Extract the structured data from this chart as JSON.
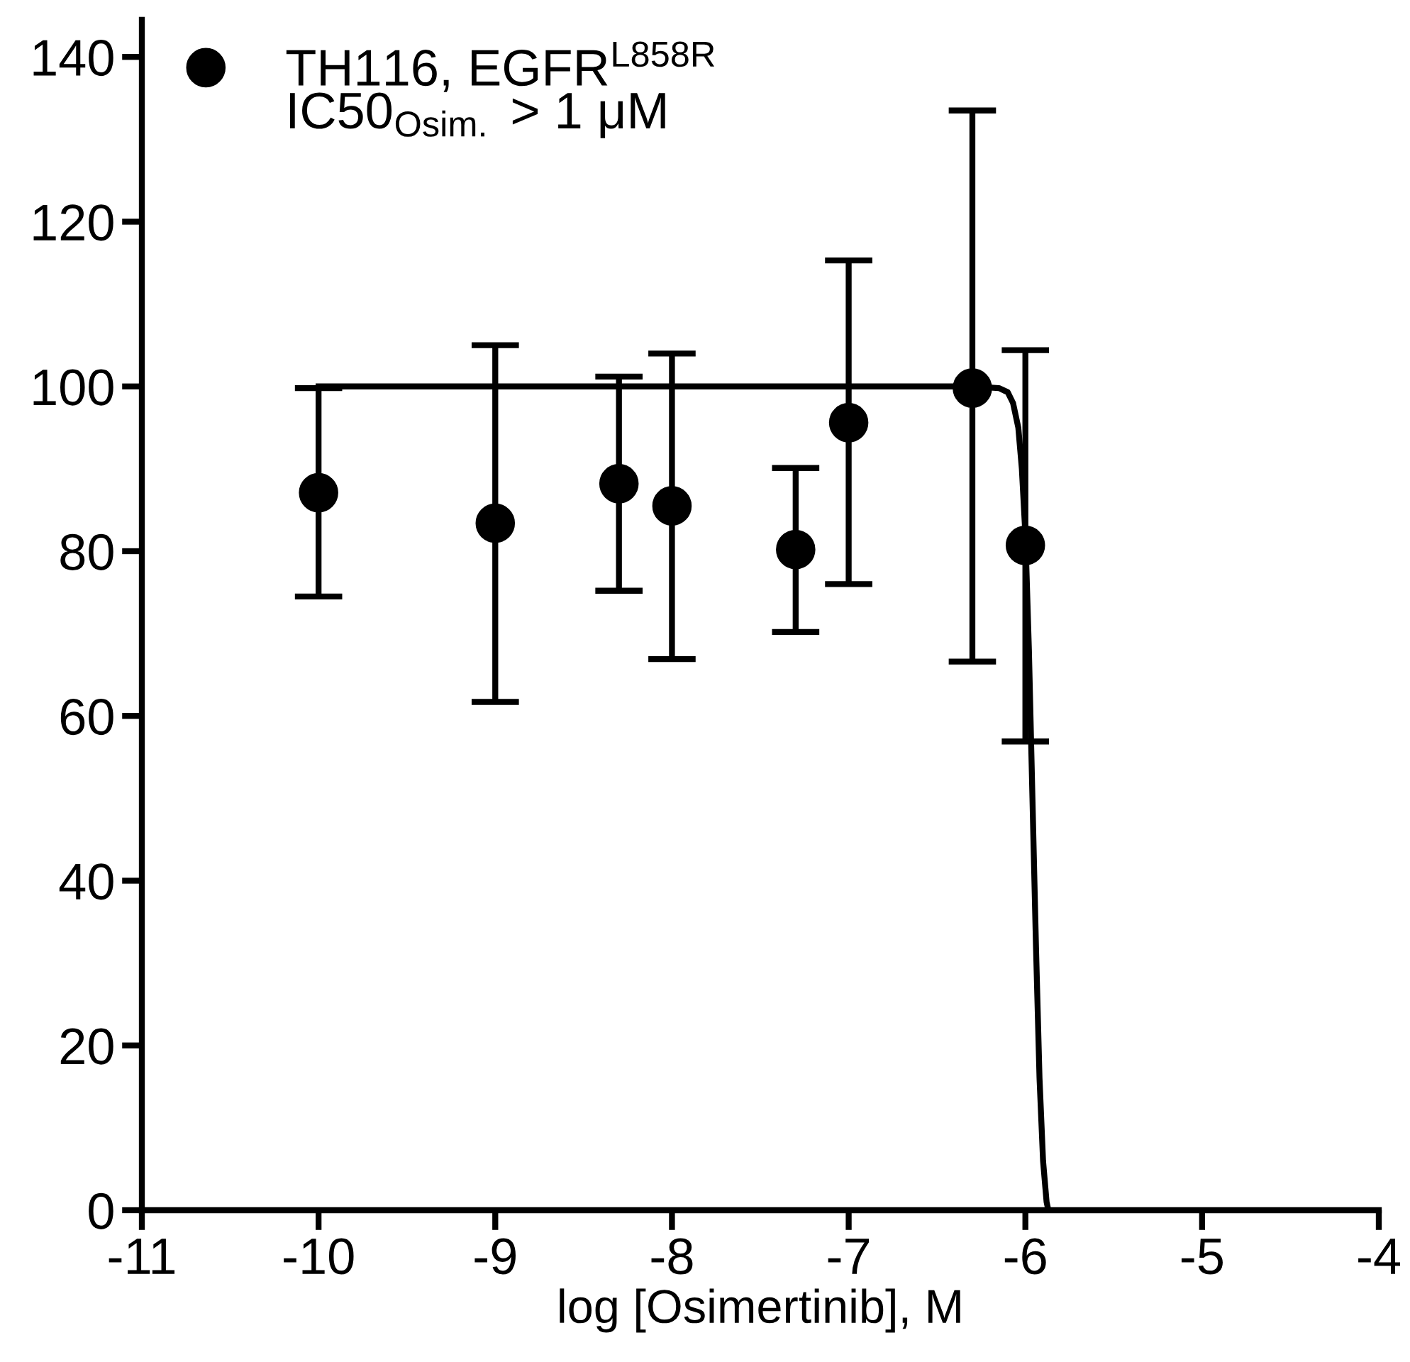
{
  "chart_data": {
    "type": "scatter",
    "xlabel": "log [Osimertinib], M",
    "xlim": [
      -11,
      -4
    ],
    "xticks": [
      -11,
      -10,
      -9,
      -8,
      -7,
      -6,
      -5,
      -4
    ],
    "ylim": [
      0,
      144.5
    ],
    "yticks": [
      0,
      20,
      40,
      60,
      80,
      100,
      120,
      140
    ],
    "grid": false,
    "legend": "top left",
    "annotations": [
      "IC50$_{Osim.}$ > 1 μM"
    ],
    "series": [
      {
        "name": "TH116, EGFR$^{L858R}$",
        "marker": "circle",
        "color": "#000000",
        "x": [
          -10,
          -9,
          -8.3,
          -8,
          -7.3,
          -7,
          -6.3,
          -6
        ],
        "values": [
          87.1,
          83.4,
          88.2,
          85.5,
          80.2,
          95.6,
          99.8,
          80.7
        ],
        "errors": [
          [
            74.5,
            99.8
          ],
          [
            61.7,
            105.0
          ],
          [
            75.2,
            101.2
          ],
          [
            66.9,
            104.0
          ],
          [
            70.2,
            90.1
          ],
          [
            76.0,
            115.3
          ],
          [
            66.6,
            133.5
          ],
          [
            56.9,
            104.4
          ]
        ]
      },
      {
        "type": "line",
        "color": "#000000",
        "line_style": "solid",
        "x": [
          -10,
          -8,
          -7,
          -6.3,
          -6.15,
          -6.1,
          -6.07,
          -6.04,
          -6.02,
          -6.0,
          -5.98,
          -5.96,
          -5.94,
          -5.92,
          -5.9,
          -5.88,
          -5.87
        ],
        "values": [
          100,
          100,
          100,
          100,
          99.8,
          99.3,
          98,
          95,
          90,
          82,
          68,
          50,
          32,
          16,
          6,
          1,
          0
        ]
      }
    ]
  }
}
